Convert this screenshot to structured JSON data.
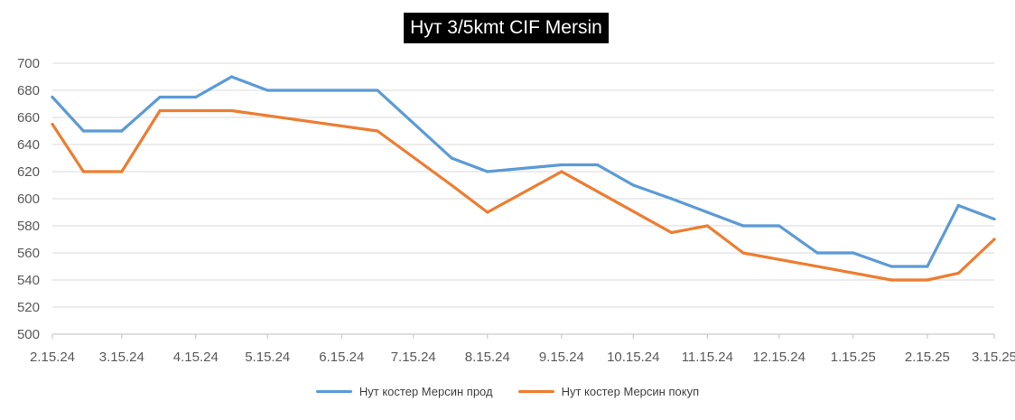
{
  "chart_data": {
    "type": "line",
    "title": "Нут 3/5kmt CIF Mersin",
    "xlabel": "",
    "ylabel": "",
    "ylim": [
      500,
      700
    ],
    "y_ticks": [
      500,
      520,
      540,
      560,
      580,
      600,
      620,
      640,
      660,
      680,
      700
    ],
    "x_tick_labels": [
      "2.15.24",
      "3.15.24",
      "4.15.24",
      "5.15.24",
      "6.15.24",
      "7.15.24",
      "8.15.24",
      "9.15.24",
      "10.15.24",
      "11.15.24",
      "12.15.24",
      "1.15.25",
      "2.15.25",
      "3.15.25"
    ],
    "grid": "horizontal",
    "legend_position": "bottom",
    "series": [
      {
        "name": "Нут костер Мерсин прод",
        "color": "#5b9bd5",
        "points": [
          {
            "x": "2.15.24",
            "y": 675
          },
          {
            "x": "2.28.24",
            "y": 650
          },
          {
            "x": "3.15.24",
            "y": 650
          },
          {
            "x": "3.31.24",
            "y": 675
          },
          {
            "x": "4.15.24",
            "y": 675
          },
          {
            "x": "4.30.24",
            "y": 690
          },
          {
            "x": "5.15.24",
            "y": 680
          },
          {
            "x": "6.30.24",
            "y": 680
          },
          {
            "x": "7.31.24",
            "y": 630
          },
          {
            "x": "8.15.24",
            "y": 620
          },
          {
            "x": "9.15.24",
            "y": 625
          },
          {
            "x": "9.30.24",
            "y": 625
          },
          {
            "x": "10.15.24",
            "y": 610
          },
          {
            "x": "10.31.24",
            "y": 600
          },
          {
            "x": "11.15.24",
            "y": 590
          },
          {
            "x": "11.30.24",
            "y": 580
          },
          {
            "x": "12.15.24",
            "y": 580
          },
          {
            "x": "12.31.24",
            "y": 560
          },
          {
            "x": "1.15.25",
            "y": 560
          },
          {
            "x": "1.31.25",
            "y": 550
          },
          {
            "x": "2.15.25",
            "y": 550
          },
          {
            "x": "2.28.25",
            "y": 595
          },
          {
            "x": "3.15.25",
            "y": 585
          }
        ]
      },
      {
        "name": "Нут костер Мерсин покуп",
        "color": "#ed7d31",
        "points": [
          {
            "x": "2.15.24",
            "y": 655
          },
          {
            "x": "2.28.24",
            "y": 620
          },
          {
            "x": "3.15.24",
            "y": 620
          },
          {
            "x": "3.31.24",
            "y": 665
          },
          {
            "x": "4.15.24",
            "y": 665
          },
          {
            "x": "4.30.24",
            "y": 665
          },
          {
            "x": "6.30.24",
            "y": 650
          },
          {
            "x": "7.31.24",
            "y": 610
          },
          {
            "x": "8.15.24",
            "y": 590
          },
          {
            "x": "9.15.24",
            "y": 620
          },
          {
            "x": "10.31.24",
            "y": 575
          },
          {
            "x": "11.15.24",
            "y": 580
          },
          {
            "x": "11.30.24",
            "y": 560
          },
          {
            "x": "1.31.25",
            "y": 540
          },
          {
            "x": "2.15.25",
            "y": 540
          },
          {
            "x": "2.28.25",
            "y": 545
          },
          {
            "x": "3.15.25",
            "y": 570
          }
        ]
      }
    ]
  }
}
